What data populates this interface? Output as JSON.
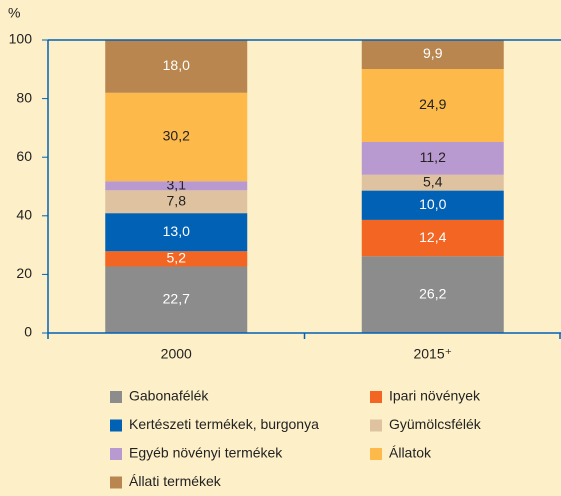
{
  "chart_data": {
    "type": "stacked_bar",
    "y_label": "%",
    "categories": [
      "2000",
      "2015⁺"
    ],
    "ylim": [
      0,
      100
    ],
    "yticks": [
      0,
      20,
      40,
      60,
      80,
      100
    ],
    "series": [
      {
        "name": "Gabonafélék",
        "color": "#8c8c8c",
        "values": [
          22.7,
          26.2
        ],
        "value_labels": [
          "22,7",
          "26,2"
        ]
      },
      {
        "name": "Ipari növények",
        "color": "#f26522",
        "values": [
          5.2,
          12.4
        ],
        "value_labels": [
          "5,2",
          "12,4"
        ]
      },
      {
        "name": "Kertészeti termékek, burgonya",
        "color": "#0061b5",
        "values": [
          13.0,
          10.0
        ],
        "value_labels": [
          "13,0",
          "10,0"
        ]
      },
      {
        "name": "Gyümölcsfélék",
        "color": "#dfc3a0",
        "values": [
          7.8,
          5.4
        ],
        "value_labels": [
          "7,8",
          "5,4"
        ]
      },
      {
        "name": "Egyéb növényi termékek",
        "color": "#b99ad0",
        "values": [
          3.1,
          11.2
        ],
        "value_labels": [
          "3,1",
          "11,2"
        ]
      },
      {
        "name": "Állatok",
        "color": "#fdb94a",
        "values": [
          30.2,
          24.9
        ],
        "value_labels": [
          "30,2",
          "24,9"
        ]
      },
      {
        "name": "Állati termékek",
        "color": "#b8864e",
        "values": [
          18.0,
          9.9
        ],
        "value_labels": [
          "18,0",
          "9,9"
        ]
      }
    ]
  }
}
